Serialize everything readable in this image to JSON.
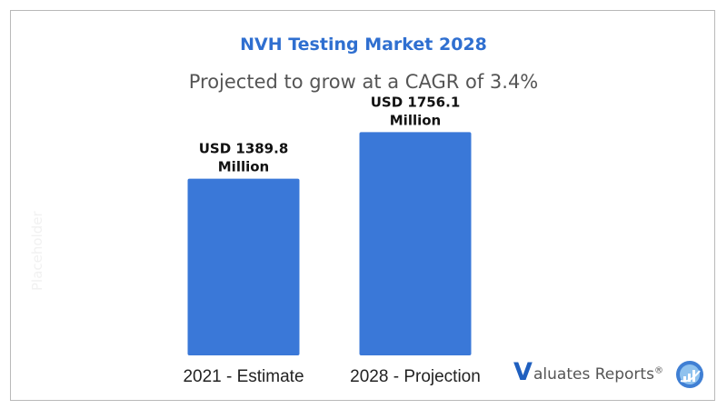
{
  "chart_data": {
    "type": "bar",
    "title": "NVH Testing Market 2028",
    "subtitle": "Projected to grow at a CAGR of 3.4%",
    "categories": [
      "2021 - Estimate",
      "2028  - Projection"
    ],
    "values": [
      1389.8,
      1756.1
    ],
    "data_labels": [
      [
        "USD 1389.8",
        "Million"
      ],
      [
        "USD 1756.1",
        "Million"
      ]
    ],
    "ylim": [
      0,
      2100
    ],
    "grid": false,
    "bar_color": "#3a78d8"
  },
  "watermark": "Placeholder",
  "logo": {
    "letter": "V",
    "text": "aluates Reports",
    "mark": "®",
    "icon": "bar-chart-circle-icon"
  }
}
